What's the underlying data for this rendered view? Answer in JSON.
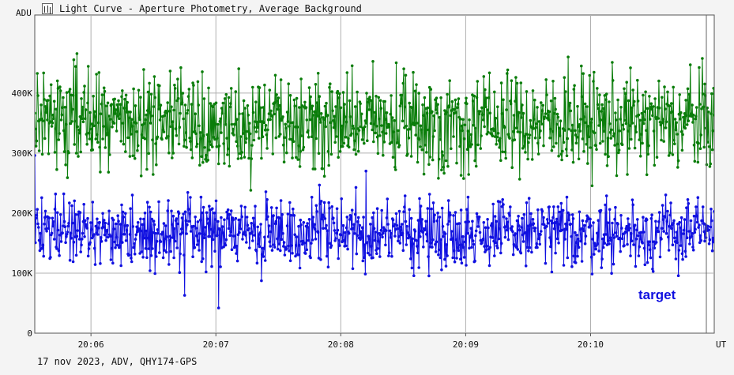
{
  "window": {
    "title": "Light Curve - Aperture Photometry, Average Background",
    "icon": "chart-icon"
  },
  "footer": {
    "text": "17 nov 2023, ADV, QHY174-GPS"
  },
  "colors": {
    "target": "#1010e0",
    "comparison": "#0a7d0a",
    "grid": "#b0b0b0",
    "frame": "#555555"
  },
  "chart_data": {
    "type": "line",
    "ylabel": "ADU",
    "xlabel": "UT",
    "ylim": [
      0,
      530000
    ],
    "xlim_minutes": [
      5.55,
      10.99
    ],
    "x_ticks": [
      {
        "label": "20:06",
        "minute": 6.0
      },
      {
        "label": "20:07",
        "minute": 7.0
      },
      {
        "label": "20:08",
        "minute": 8.0
      },
      {
        "label": "20:09",
        "minute": 9.0
      },
      {
        "label": "20:10",
        "minute": 10.0
      }
    ],
    "y_ticks": [
      {
        "label": "0",
        "value": 0
      },
      {
        "label": "100K",
        "value": 100000
      },
      {
        "label": "200K",
        "value": 200000
      },
      {
        "label": "300K",
        "value": 300000
      },
      {
        "label": "400K",
        "value": 400000
      }
    ],
    "grid": true,
    "series": [
      {
        "name": "target",
        "color": "#1010e0",
        "mean": 167000,
        "spread": 28000,
        "start_minute": 5.55,
        "end_minute": 10.99,
        "points": 1080,
        "outliers": [
          {
            "minute": 6.75,
            "value": 63000
          },
          {
            "minute": 7.02,
            "value": 42000
          },
          {
            "minute": 8.2,
            "value": 270000
          },
          {
            "minute": 5.42,
            "value": 296000
          }
        ]
      },
      {
        "name": "",
        "color": "#0a7d0a",
        "mean": 350000,
        "spread": 40000,
        "start_minute": 5.55,
        "end_minute": 10.99,
        "points": 1080,
        "outliers": [
          {
            "minute": 6.4,
            "value": 262000
          },
          {
            "minute": 7.28,
            "value": 238000
          },
          {
            "minute": 9.82,
            "value": 460000
          },
          {
            "minute": 10.8,
            "value": 447000
          }
        ]
      }
    ],
    "legend": {
      "label": "target",
      "placement": "bottom-right",
      "color": "#1010e0"
    }
  }
}
